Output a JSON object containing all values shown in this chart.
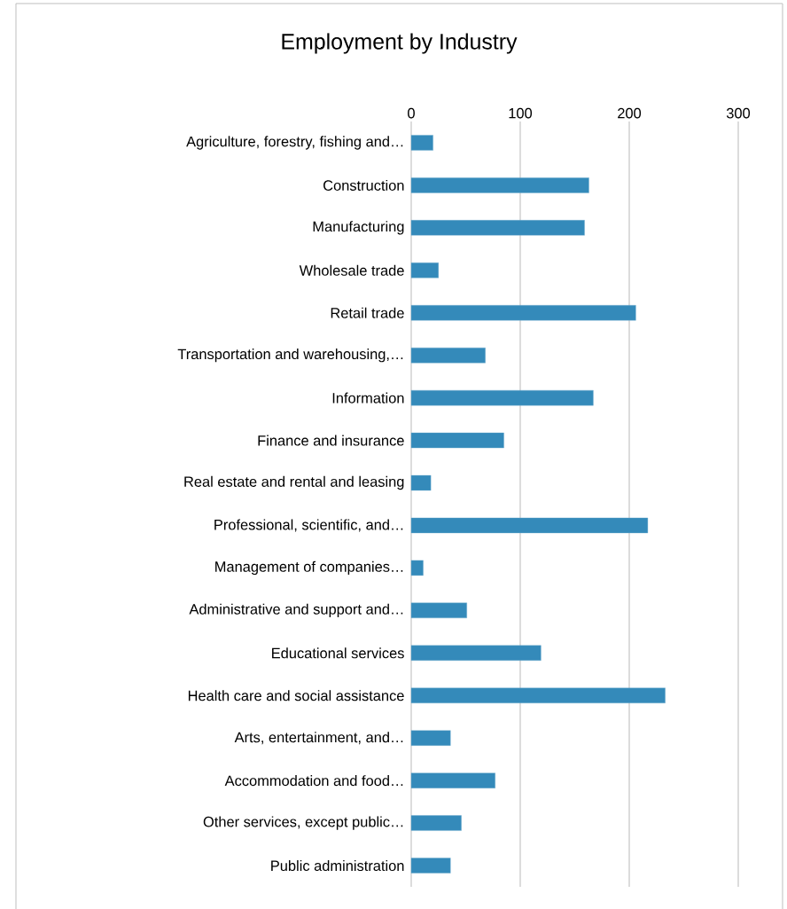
{
  "chart_data": {
    "type": "bar",
    "orientation": "horizontal",
    "title": "Employment by Industry",
    "categories": [
      "Agriculture, forestry, fishing and…",
      "Construction",
      "Manufacturing",
      "Wholesale trade",
      "Retail trade",
      "Transportation and warehousing,…",
      "Information",
      "Finance and insurance",
      "Real estate and rental and leasing",
      "Professional, scientific, and…",
      "Management of companies…",
      "Administrative and support and…",
      "Educational services",
      "Health care and social assistance",
      "Arts, entertainment, and…",
      "Accommodation and food…",
      "Other services, except public…",
      "Public administration"
    ],
    "values": [
      20,
      163,
      159,
      25,
      206,
      68,
      167,
      85,
      18,
      217,
      11,
      51,
      119,
      233,
      36,
      77,
      46,
      36
    ],
    "color": "#348aba",
    "xlim": [
      0,
      300
    ],
    "xticks": [
      0,
      100,
      200,
      300
    ],
    "grid": "x"
  }
}
